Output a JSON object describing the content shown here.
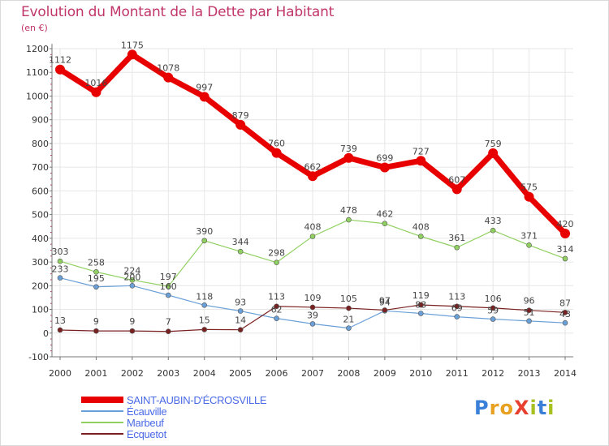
{
  "header": {
    "title": "Evolution du Montant de la Dette par Habitant",
    "subtitle": "(en €)"
  },
  "logo": {
    "text": "ProXiti",
    "letter_colors": [
      "#3a7fd8",
      "#e8a020",
      "#e8a020",
      "#e84030",
      "#a8c020",
      "#3a7fd8",
      "#a8c020"
    ]
  },
  "colors": {
    "axis": "#777777",
    "grid": "#e6e6e6",
    "tick_text": "#333333",
    "label_text": "#444444",
    "plot_background": "#ffffff"
  },
  "chart_data": {
    "type": "line",
    "x": [
      2000,
      2001,
      2002,
      2003,
      2004,
      2005,
      2006,
      2007,
      2008,
      2009,
      2010,
      2011,
      2012,
      2013,
      2014
    ],
    "ylim": [
      -100,
      1200
    ],
    "yticks": [
      -100,
      0,
      100,
      200,
      300,
      400,
      500,
      600,
      700,
      800,
      900,
      1000,
      1100,
      1200
    ],
    "grid": true,
    "legend_position": "bottom-left",
    "series": [
      {
        "name": "SAINT-AUBIN-D'ÉCROSVILLE",
        "color": "#e80000",
        "values": [
          1112,
          1016,
          1175,
          1078,
          997,
          879,
          760,
          662,
          739,
          699,
          727,
          607,
          759,
          575,
          420
        ]
      },
      {
        "name": "Écauville",
        "color": "#6aa0d8",
        "values": [
          233,
          195,
          200,
          160,
          118,
          93,
          62,
          39,
          21,
          94,
          83,
          69,
          59,
          51,
          43
        ]
      },
      {
        "name": "Marbeuf",
        "color": "#90d060",
        "values": [
          303,
          258,
          224,
          197,
          390,
          344,
          298,
          408,
          478,
          462,
          408,
          361,
          433,
          371,
          314
        ]
      },
      {
        "name": "Ecquetot",
        "color": "#7a2020",
        "values": [
          13,
          9,
          9,
          7,
          15,
          14,
          113,
          109,
          105,
          97,
          119,
          113,
          106,
          96,
          87
        ]
      }
    ]
  }
}
